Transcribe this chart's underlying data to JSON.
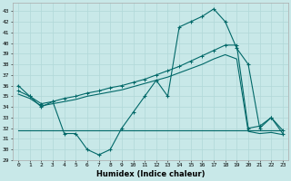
{
  "xlabel": "Humidex (Indice chaleur)",
  "background_color": "#c8e8e8",
  "grid_color": "#b0d8d8",
  "line_color": "#006868",
  "xlim": [
    -0.5,
    23.5
  ],
  "ylim": [
    29,
    43.8
  ],
  "yticks": [
    29,
    30,
    31,
    32,
    33,
    34,
    35,
    36,
    37,
    38,
    39,
    40,
    41,
    42,
    43
  ],
  "xticks": [
    0,
    1,
    2,
    3,
    4,
    5,
    6,
    7,
    8,
    9,
    10,
    11,
    12,
    13,
    14,
    15,
    16,
    17,
    18,
    19,
    20,
    21,
    22,
    23
  ],
  "line1_x": [
    0,
    1,
    2,
    3,
    4,
    5,
    6,
    7,
    8,
    9,
    10,
    11,
    12,
    13,
    14,
    15,
    16,
    17,
    18,
    19,
    20,
    21,
    22,
    23
  ],
  "line1_y": [
    36.0,
    35.0,
    34.0,
    34.5,
    31.5,
    31.5,
    30.0,
    29.5,
    30.0,
    32.0,
    33.5,
    35.0,
    36.5,
    35.0,
    41.5,
    42.0,
    42.5,
    43.2,
    42.0,
    39.5,
    38.0,
    32.0,
    33.0,
    31.5
  ],
  "line2_x": [
    0,
    1,
    2,
    3,
    4,
    5,
    6,
    7,
    8,
    9,
    10,
    11,
    12,
    13,
    14,
    15,
    16,
    17,
    18,
    19,
    20,
    21,
    22,
    23
  ],
  "line2_y": [
    35.5,
    35.0,
    34.3,
    34.5,
    34.8,
    35.0,
    35.3,
    35.5,
    35.8,
    36.0,
    36.3,
    36.6,
    37.0,
    37.4,
    37.8,
    38.3,
    38.8,
    39.3,
    39.8,
    39.8,
    32.0,
    32.2,
    33.0,
    31.8
  ],
  "line3_x": [
    0,
    1,
    2,
    3,
    4,
    5,
    6,
    7,
    8,
    9,
    10,
    11,
    12,
    13,
    14,
    15,
    16,
    17,
    18,
    19,
    20,
    21,
    22,
    23
  ],
  "line3_y": [
    35.2,
    34.8,
    34.1,
    34.3,
    34.5,
    34.7,
    35.0,
    35.2,
    35.4,
    35.6,
    35.9,
    36.2,
    36.5,
    36.8,
    37.2,
    37.6,
    38.0,
    38.5,
    38.9,
    38.5,
    31.7,
    31.5,
    31.6,
    31.4
  ],
  "line4_x": [
    0,
    1,
    2,
    3,
    4,
    5,
    6,
    7,
    8,
    9,
    10,
    11,
    12,
    13,
    14,
    15,
    16,
    17,
    18,
    19,
    20,
    21,
    22,
    23
  ],
  "line4_y": [
    31.8,
    31.8,
    31.8,
    31.8,
    31.8,
    31.8,
    31.8,
    31.8,
    31.8,
    31.8,
    31.8,
    31.8,
    31.8,
    31.8,
    31.8,
    31.8,
    31.8,
    31.8,
    31.8,
    31.8,
    31.8,
    31.8,
    31.8,
    31.8
  ]
}
